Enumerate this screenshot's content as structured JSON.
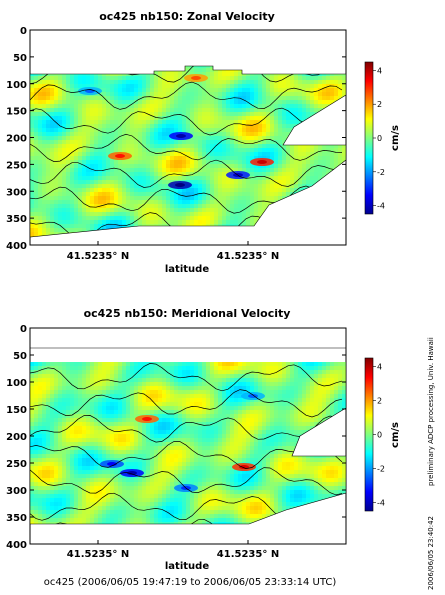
{
  "figure": {
    "footer": "oc425 (2006/06/05 19:47:19 to 2006/06/05 23:33:14 UTC)",
    "side_note": "preliminary ADCP processing,   Univ. Hawaii",
    "side_date": "2006/06/05 23:40:42"
  },
  "chart_data": [
    {
      "type": "heatmap",
      "title": "oc425 nb150: Zonal Velocity",
      "xlabel": "latitude",
      "ylabel": "",
      "x_ticks": [
        "41.5235° N",
        "41.5235° N"
      ],
      "y_ticks": [
        0,
        50,
        100,
        150,
        200,
        250,
        300,
        350,
        400
      ],
      "ylim": [
        400,
        0
      ],
      "y_reversed": true,
      "colorbar": {
        "label": "cm/s",
        "ticks": [
          4,
          2,
          0,
          -2,
          -4
        ],
        "range": [
          -4.5,
          4.5
        ],
        "colormap": "jet"
      },
      "data_depth_range": [
        44,
        222
      ],
      "grid": false
    },
    {
      "type": "heatmap",
      "title": "oc425 nb150: Meridional Velocity",
      "xlabel": "latitude",
      "ylabel": "",
      "x_ticks": [
        "41.5235° N",
        "41.5235° N"
      ],
      "y_ticks": [
        0,
        50,
        100,
        150,
        200,
        250,
        300,
        350,
        400
      ],
      "ylim": [
        400,
        0
      ],
      "y_reversed": true,
      "colorbar": {
        "label": "cm/s",
        "ticks": [
          4,
          2,
          0,
          -2,
          -4
        ],
        "range": [
          -4.5,
          4.5
        ],
        "colormap": "jet"
      },
      "data_depth_range": [
        38,
        222
      ],
      "grid": false
    }
  ]
}
